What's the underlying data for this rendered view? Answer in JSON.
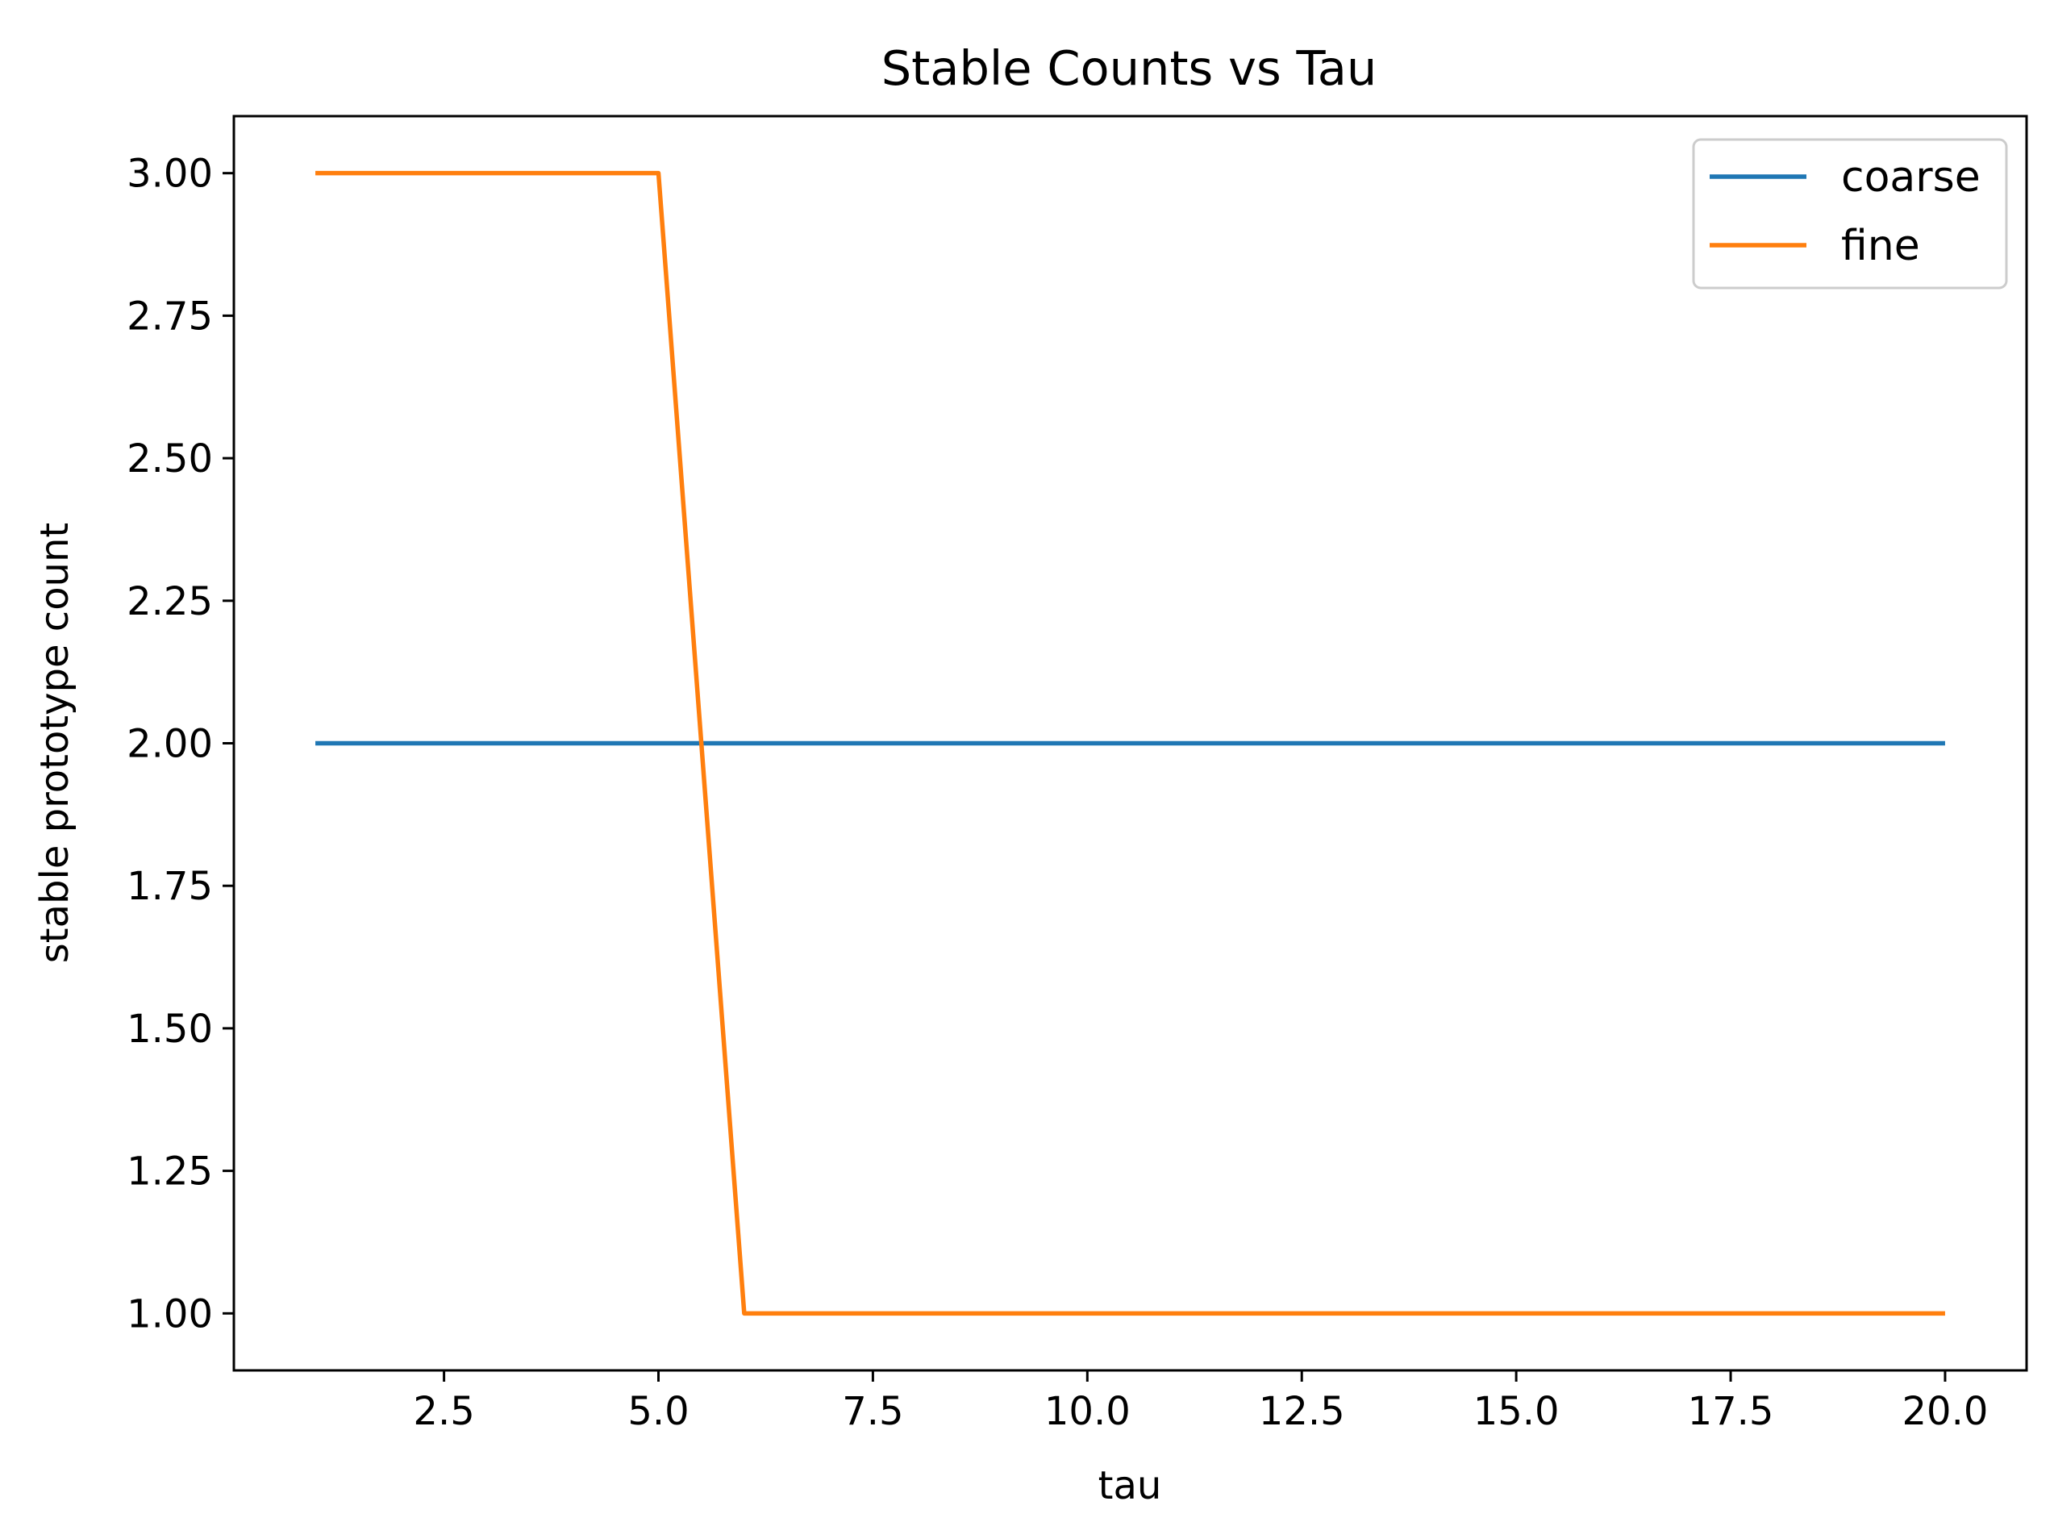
{
  "chart_data": {
    "type": "line",
    "title": "Stable Counts vs Tau",
    "xlabel": "tau",
    "ylabel": "stable prototype count",
    "x": [
      1,
      2,
      3,
      4,
      5,
      6,
      7,
      8,
      9,
      10,
      11,
      12,
      13,
      14,
      15,
      16,
      17,
      18,
      19,
      20
    ],
    "series": [
      {
        "name": "coarse",
        "color": "#1f77b4",
        "values": [
          2,
          2,
          2,
          2,
          2,
          2,
          2,
          2,
          2,
          2,
          2,
          2,
          2,
          2,
          2,
          2,
          2,
          2,
          2,
          2
        ]
      },
      {
        "name": "fine",
        "color": "#ff7f0e",
        "values": [
          3,
          3,
          3,
          3,
          3,
          1,
          1,
          1,
          1,
          1,
          1,
          1,
          1,
          1,
          1,
          1,
          1,
          1,
          1,
          1
        ]
      }
    ],
    "xlim": [
      0.05,
      20.95
    ],
    "ylim": [
      0.9,
      3.1
    ],
    "xticks": [
      2.5,
      5.0,
      7.5,
      10.0,
      12.5,
      15.0,
      17.5,
      20.0
    ],
    "xtick_labels": [
      "2.5",
      "5.0",
      "7.5",
      "10.0",
      "12.5",
      "15.0",
      "17.5",
      "20.0"
    ],
    "yticks": [
      1.0,
      1.25,
      1.5,
      1.75,
      2.0,
      2.25,
      2.5,
      2.75,
      3.0
    ],
    "ytick_labels": [
      "1.00",
      "1.25",
      "1.50",
      "1.75",
      "2.00",
      "2.25",
      "2.50",
      "2.75",
      "3.00"
    ],
    "grid": false,
    "legend_position": "top-right"
  }
}
